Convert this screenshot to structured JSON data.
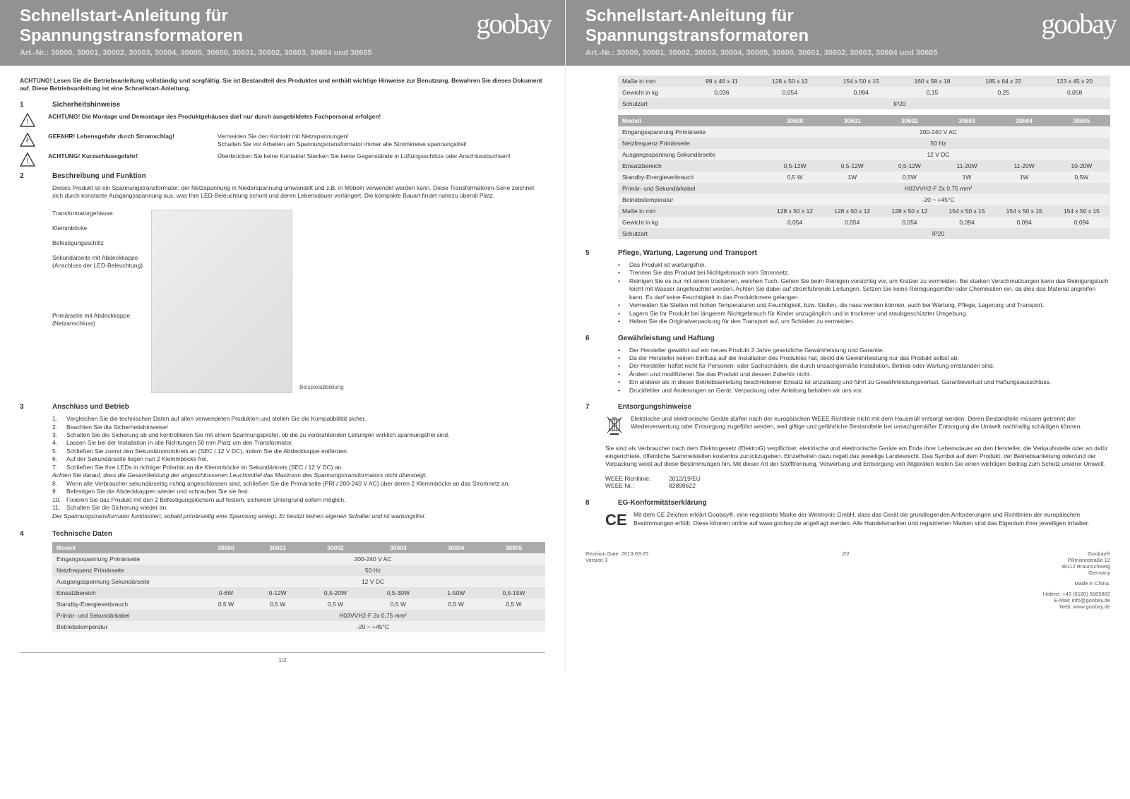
{
  "header": {
    "title_line1": "Schnellstart-Anleitung für",
    "title_line2": "Spannungstransformatoren",
    "artnr": "Art.-Nr.: 30000, 30001, 30002, 30003, 30004, 30005, 30600, 30601, 30602, 30603, 30604 und 30605",
    "logo": "goobay"
  },
  "intro": "ACHTUNG! Lesen Sie die Betriebsanleitung vollständig und sorgfältig. Sie ist Bestandteil des Produktes und enthält wichtige Hinweise zur Benutzung. Bewahren Sie dieses Dokument auf. Diese Betriebsanleitung ist eine Schnellstart-Anleitung.",
  "s1": {
    "num": "1",
    "title": "Sicherheitshinweise",
    "w1": "ACHTUNG! Die Montage und Demontage des Produktgehäuses darf nur durch ausgebildetes Fachpersonal erfolgen!",
    "w2l": "GEFAHR! Lebensgefahr durch Stromschlag!",
    "w2r": "Vermeiden Sie den Kontakt mit Netzspannungen!\nSchalten Sie vor Arbeiten am Spannungstransformator immer alle Stromkreise spannungsfrei!",
    "w3l": "ACHTUNG! Kurzschlussgefahr!",
    "w3r": "Überbrücken Sie keine Kontakte! Stecken Sie keine Gegenstände in Lüftungsschlitze oder Anschlussbuchsen!"
  },
  "s2": {
    "num": "2",
    "title": "Beschreibung und Funktion",
    "desc": "Dieses Produkt ist ein Spannungstransformator, der Netzspannung in Niederspannung umwandelt und z.B. in Möbeln verwendet werden kann. Diese Transformatoren-Serie zeichnet sich durch konstante Ausgangsspannung aus, was Ihre LED-Beleuchtung schont und deren Lebensdauer verlängert. Die kompakte Bauart findet nahezu überall Platz.",
    "labels": [
      "Transformatorgehäuse",
      "Klemmböcke",
      "Befestigungsschlitz",
      "Sekundärseite mit Abdeckkappe (Anschluss der LED-Beleuchtung)",
      "Primärseite mit Abdeckkappe (Netzanschluss)"
    ],
    "caption": "Beispielabbildung"
  },
  "s3": {
    "num": "3",
    "title": "Anschluss und Betrieb",
    "items": [
      {
        "n": "1.",
        "t": "Vergleichen Sie die technischen Daten auf allen verwendeten Produkten und stellen Sie die Kompatibilität sicher."
      },
      {
        "n": "2.",
        "t": "Beachten Sie die Sicherheitshinweise!"
      },
      {
        "n": "3.",
        "t": "Schalten Sie die Sicherung ab und kontrollieren Sie mit einem Spannungsprüfer, ob die zu verdrahtenden Leitungen wirklich spannungsfrei sind."
      },
      {
        "n": "4.",
        "t": "Lassen Sie bei der Installation in alle Richtungen 50 mm Platz um den Transformator."
      },
      {
        "n": "5.",
        "t": "Schließen Sie zuerst den Sekundärstromkreis an (SEC / 12 V DC), indem Sie die Abdeckkappe entfernen."
      },
      {
        "n": "6.",
        "t": "Auf der Sekundärseite liegen nun 2 Klemmböcke frei."
      },
      {
        "n": "7.",
        "t": "Schließen Sie Ihre LEDs in richtiger Polarität an die Klemmböcke im Sekundärkreis (SEC / 12 V DC) an."
      }
    ],
    "ital1": "Achten Sie darauf, dass die Gesamtleistung der angeschlossenen Leuchtmittel das Maximum des Spannungstransformators nicht übersteigt.",
    "items2": [
      {
        "n": "8.",
        "t": "Wenn alle Verbraucher sekundärseitig richtig angeschlossen sind, schließen Sie die Primärseite (PRI / 200-240 V AC) über deren 2 Klemmböcke an das Stromnetz an."
      },
      {
        "n": "9.",
        "t": "Befestigen Sie die Abdeckkappen wieder und schrauben Sie sie fest."
      },
      {
        "n": "10.",
        "t": "Fixieren Sie das Produkt mit den 2 Befestigungslöchern auf festem, sicherem Untergrund sofern möglich."
      },
      {
        "n": "11.",
        "t": "Schalten Sie die Sicherung wieder an."
      }
    ],
    "ital2": "Der Spannungstransformator funktioniert, sobald primärseitig eine Spannung anliegt. Er besitzt keinen eigenen Schalter und ist wartungsfrei."
  },
  "s4": {
    "num": "4",
    "title": "Technische Daten",
    "cols": [
      "Modell",
      "30000",
      "30001",
      "30002",
      "30003",
      "30004",
      "30005"
    ],
    "rows": [
      {
        "label": "Eingangsspannung Primärseite",
        "span": "200-240 V AC"
      },
      {
        "label": "Netzfrequenz Primärseite",
        "span": "50 Hz"
      },
      {
        "label": "Ausgangsspannung Sekundärseite",
        "span": "12 V DC"
      },
      {
        "label": "Einsatzbereich",
        "cells": [
          "0-6W",
          "0-12W",
          "0,5-20W",
          "0,5-30W",
          "1-50W",
          "0,5-15W"
        ]
      },
      {
        "label": "Standby-Energieverbrauch",
        "cells": [
          "0,5 W",
          "0,5 W",
          "0,5 W",
          "0,5 W",
          "0,5 W",
          "0,5 W"
        ]
      },
      {
        "label": "Primär- und Sekundärkabel",
        "span": "H03VVH2-F 2x 0,75 mm²"
      },
      {
        "label": "Betriebstemperatur",
        "span": "-20 ~ +45°C"
      }
    ]
  },
  "page2top": {
    "rows1": [
      {
        "label": "Maße in mm",
        "cells": [
          "99 x 46 x 11",
          "128 x 50 x 12",
          "154 x 50 x 15",
          "160 x 58 x 18",
          "185 x 64 x 22",
          "123 x 45 x 20"
        ]
      },
      {
        "label": "Gewicht in kg",
        "cells": [
          "0,036",
          "0,054",
          "0,094",
          "0,15",
          "0,25",
          "0,058"
        ]
      },
      {
        "label": "Schutzart",
        "span": "IP20"
      }
    ],
    "cols2": [
      "Modell",
      "30600",
      "30601",
      "30602",
      "30603",
      "30604",
      "30605"
    ],
    "rows2": [
      {
        "label": "Eingangsspannung Primärseite",
        "span": "200-240 V AC"
      },
      {
        "label": "Netzfrequenz Primärseite",
        "span": "50 Hz"
      },
      {
        "label": "Ausgangsspannung Sekundärseite",
        "span": "12 V DC"
      },
      {
        "label": "Einsatzbereich",
        "cells": [
          "0,5-12W",
          "0,5-12W",
          "0,5-12W",
          "11-20W",
          "11-20W",
          "10-20W"
        ]
      },
      {
        "label": "Standby-Energieverbrauch",
        "cells": [
          "0,5 W",
          "1W",
          "0,5W",
          "1W",
          "1W",
          "0,5W"
        ]
      },
      {
        "label": "Primär- und Sekundärkabel",
        "span": "H03VVH2-F 2x 0,75 mm²"
      },
      {
        "label": "Betriebstemperatur",
        "span": "-20 ~ +45°C"
      },
      {
        "label": "Maße in mm",
        "cells": [
          "128 x 50 x 12",
          "128 x 50 x 12",
          "128 x 50 x 12",
          "154 x 50 x 15",
          "154 x 50 x 15",
          "154 x 50 x 15"
        ]
      },
      {
        "label": "Gewicht in kg",
        "cells": [
          "0,054",
          "0,054",
          "0,054",
          "0,094",
          "0,094",
          "0,094"
        ]
      },
      {
        "label": "Schutzart",
        "span": "IP20"
      }
    ]
  },
  "s5": {
    "num": "5",
    "title": "Pflege, Wartung, Lagerung und Transport",
    "items": [
      "Das Produkt ist wartungsfrei.",
      "Trennen Sie das Produkt bei Nichtgebrauch vom Stromnetz.",
      "Reinigen Sie es nur mit einem trockenen, weichen Tuch. Gehen Sie beim Reinigen vorsichtig vor, um Kratzer zu vermeiden. Bei starken Verschmutzungen kann das Reinigungstuch leicht mit Wasser angefeuchtet werden. Achten Sie dabei auf stromführende Leitungen. Setzen Sie keine Reinigungsmittel oder Chemikalien ein, da dies das Material angreifen kann. Es darf keine Feuchtigkeit in das Produktinnere gelangen.",
      "Vermeiden Sie Stellen mit hohen Temperaturen und Feuchtigkeit, bzw. Stellen, die nass werden können, auch bei Wartung, Pflege, Lagerung und Transport.",
      "Lagern Sie Ihr Produkt bei längerem Nichtgebrauch für Kinder unzugänglich und in trockener und staubgeschützter Umgebung.",
      "Heben Sie die Originalverpackung für den Transport auf, um Schäden zu vermeiden."
    ]
  },
  "s6": {
    "num": "6",
    "title": "Gewährleistung und Haftung",
    "items": [
      "Der Hersteller gewährt auf ein neues Produkt 2 Jahre gesetzliche Gewährleistung und Garantie.",
      "Da der Hersteller keinen Einfluss auf die Installation des Produktes hat, deckt die Gewährleistung nur das Produkt selbst ab.",
      "Der Hersteller haftet nicht für Personen- oder Sachschäden, die durch unsachgemäße Installation, Betrieb oder Wartung entstanden sind.",
      "Ändern und modifizieren Sie das Produkt und dessen Zubehör nicht.",
      "Ein anderer als in dieser Betriebsanleitung beschriebener Einsatz ist unzulässig und führt zu Gewährleistungsverlust, Garantieverlust und Haftungsausschluss.",
      "Druckfehler und Änderungen an Gerät, Verpackung oder Anleitung behalten wir uns vor."
    ]
  },
  "s7": {
    "num": "7",
    "title": "Entsorgungshinweise",
    "text": "Elektrische und elektronische Geräte dürfen nach der europäischen WEEE Richtlinie nicht mit dem Hausmüll entsorgt werden. Deren Bestandteile müssen getrennt der Wiederverwertung oder Entsorgung zugeführt werden, weil giftige und gefährliche Bestandteile bei unsachgemäßer Entsorgung die Umwelt nachhaltig schädigen können.",
    "free": "Sie sind als Verbraucher nach dem Elektrogesetz (ElektroG) verpflichtet, elektrische und elektronische Geräte am Ende ihrer Lebensdauer an den Hersteller, die Verkaufsstelle oder an dafür eingerichtete, öffentliche Sammelstellen kostenlos zurückzugeben. Einzelheiten dazu regelt das jeweilige Landesrecht. Das Symbol auf dem Produkt, der Betriebsanleitung oder/und der Verpackung weist auf diese Bestimmungen hin. Mit dieser Art der Stofftrennung, Verwertung und Entsorgung von Altgeräten leisten Sie einen wichtigen Beitrag zum Schutz unserer Umwelt.",
    "weee_l1": "WEEE Richtlinie:",
    "weee_v1": "2012/19/EU",
    "weee_l2": "WEEE Nr.:",
    "weee_v2": "82898622"
  },
  "s8": {
    "num": "8",
    "title": "EG-Konformitätserklärung",
    "text": "Mit dem CE Zeichen erklärt Goobay®, eine registrierte Marke der Wentronic GmbH, dass das Gerät die grundlegenden Anforderungen und Richtlinien der europäischen Bestimmungen erfüllt. Diese können online auf www.goobay.de angefragt werden. Alle Handelsmarken und registrierten Marken sind das Eigentum ihrer jeweiligen Inhaber."
  },
  "footer": {
    "rev": "Revision Date: 2013-03-25",
    "ver": "Version 3",
    "addr1": "Goobay®",
    "addr2": "Pillmannstraße 12",
    "addr3": "38112 Braunschweig",
    "addr4": "Germany",
    "made": "Made in China.",
    "hot": "Hotline: +49 (0180) 5005882",
    "mail": "E-Mail: info@goobay.de",
    "web": "Web: www.goobay.de",
    "p1": "1/2",
    "p2": "2/2"
  }
}
